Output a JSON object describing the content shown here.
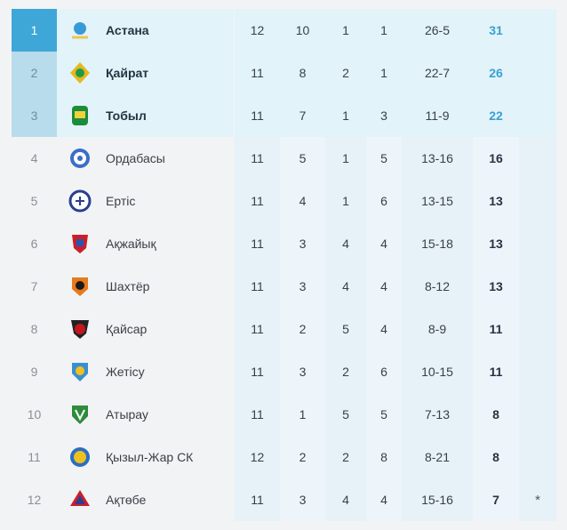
{
  "standings": [
    {
      "rank": "1",
      "team": "Астана",
      "gp": "12",
      "w": "10",
      "d": "1",
      "l": "1",
      "goals": "26-5",
      "pts": "31",
      "note": "",
      "logo": "astana-logo-icon",
      "logo_color": "#3a9ad6",
      "logo_accent": "#e8c94a"
    },
    {
      "rank": "2",
      "team": "Қайрат",
      "gp": "11",
      "w": "8",
      "d": "2",
      "l": "1",
      "goals": "22-7",
      "pts": "26",
      "note": "",
      "logo": "kairat-logo-icon",
      "logo_color": "#e6b820",
      "logo_accent": "#1f9a4a"
    },
    {
      "rank": "3",
      "team": "Тобыл",
      "gp": "11",
      "w": "7",
      "d": "1",
      "l": "3",
      "goals": "11-9",
      "pts": "22",
      "note": "",
      "logo": "tobol-logo-icon",
      "logo_color": "#1b8c3c",
      "logo_accent": "#f2d23a"
    },
    {
      "rank": "4",
      "team": "Ордабасы",
      "gp": "11",
      "w": "5",
      "d": "1",
      "l": "5",
      "goals": "13-16",
      "pts": "16",
      "note": "",
      "logo": "ordabasy-logo-icon",
      "logo_color": "#3a6ec7",
      "logo_accent": "#ffffff"
    },
    {
      "rank": "5",
      "team": "Ертіс",
      "gp": "11",
      "w": "4",
      "d": "1",
      "l": "6",
      "goals": "13-15",
      "pts": "13",
      "note": "",
      "logo": "irtysh-logo-icon",
      "logo_color": "#2a3f8f",
      "logo_accent": "#ffffff"
    },
    {
      "rank": "6",
      "team": "Ақжайық",
      "gp": "11",
      "w": "3",
      "d": "4",
      "l": "4",
      "goals": "15-18",
      "pts": "13",
      "note": "",
      "logo": "akzhaiyk-logo-icon",
      "logo_color": "#c8202a",
      "logo_accent": "#2a52b8"
    },
    {
      "rank": "7",
      "team": "Шахтёр",
      "gp": "11",
      "w": "3",
      "d": "4",
      "l": "4",
      "goals": "8-12",
      "pts": "13",
      "note": "",
      "logo": "shakhter-logo-icon",
      "logo_color": "#e87a1a",
      "logo_accent": "#1a1a1a"
    },
    {
      "rank": "8",
      "team": "Қайсар",
      "gp": "11",
      "w": "2",
      "d": "5",
      "l": "4",
      "goals": "8-9",
      "pts": "11",
      "note": "",
      "logo": "kaisar-logo-icon",
      "logo_color": "#c4161c",
      "logo_accent": "#222222"
    },
    {
      "rank": "9",
      "team": "Жетісу",
      "gp": "11",
      "w": "3",
      "d": "2",
      "l": "6",
      "goals": "10-15",
      "pts": "11",
      "note": "",
      "logo": "zhetysu-logo-icon",
      "logo_color": "#f0c020",
      "logo_accent": "#3a8fd0"
    },
    {
      "rank": "10",
      "team": "Атырау",
      "gp": "11",
      "w": "1",
      "d": "5",
      "l": "5",
      "goals": "7-13",
      "pts": "8",
      "note": "",
      "logo": "atyrau-logo-icon",
      "logo_color": "#2e8b3a",
      "logo_accent": "#ffffff"
    },
    {
      "rank": "11",
      "team": "Қызыл-Жар СК",
      "gp": "12",
      "w": "2",
      "d": "2",
      "l": "8",
      "goals": "8-21",
      "pts": "8",
      "note": "",
      "logo": "kyzylzhar-logo-icon",
      "logo_color": "#2a6fc0",
      "logo_accent": "#f0c020"
    },
    {
      "rank": "12",
      "team": "Ақтөбе",
      "gp": "11",
      "w": "3",
      "d": "4",
      "l": "4",
      "goals": "15-16",
      "pts": "7",
      "note": "*",
      "logo": "aktobe-logo-icon",
      "logo_color": "#c8202a",
      "logo_accent": "#2a3f8f"
    }
  ]
}
